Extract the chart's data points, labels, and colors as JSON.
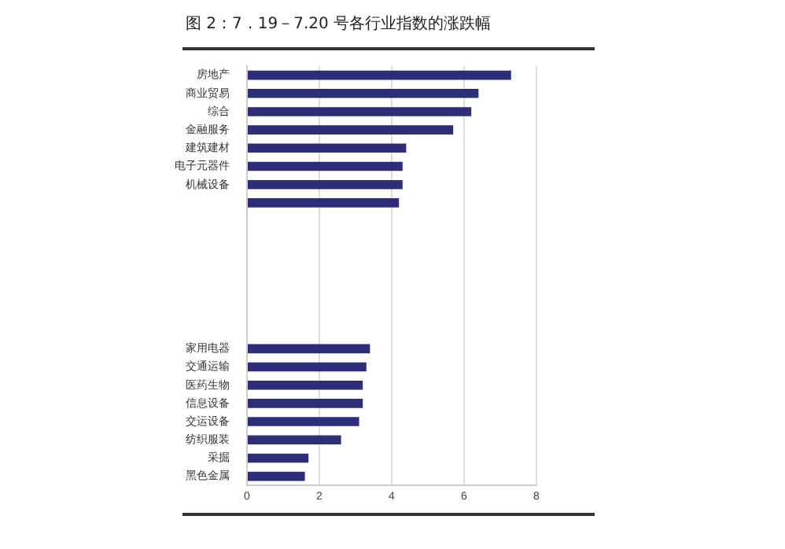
{
  "chart_data": {
    "type": "bar",
    "orientation": "horizontal",
    "title": "图 2：7．19－7.20 号各行业指数的涨跌幅",
    "categories": [
      "房地产",
      "商业贸易",
      "综合",
      "金融服务",
      "建筑建材",
      "电子元器件",
      "机械设备",
      null,
      null,
      null,
      null,
      null,
      null,
      null,
      null,
      "家用电器",
      "交通运输",
      "医药生物",
      "信息设备",
      "交运设备",
      "纺织服装",
      "采掘",
      "黑色金属"
    ],
    "values": [
      7.3,
      6.4,
      6.2,
      5.7,
      4.4,
      4.3,
      4.3,
      4.2,
      null,
      null,
      null,
      null,
      null,
      null,
      null,
      3.4,
      3.3,
      3.2,
      3.2,
      3.1,
      2.6,
      1.7,
      1.6
    ],
    "color": "#2e2d7a",
    "xlim": [
      0,
      8
    ],
    "xticks": [
      0,
      2,
      4,
      6,
      8
    ],
    "grid": "x"
  }
}
